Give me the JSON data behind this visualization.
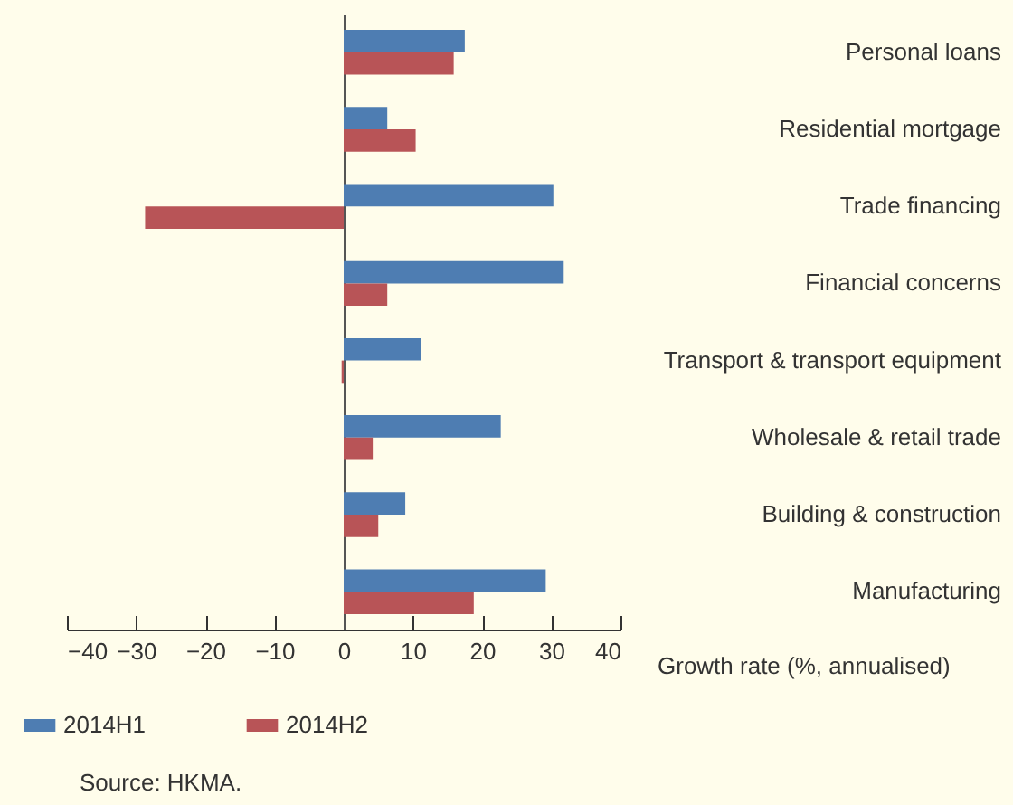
{
  "chart_data": {
    "type": "bar",
    "orientation": "horizontal",
    "xlabel": "Growth rate (%, annualised)",
    "categories": [
      "Personal loans",
      "Residential mortgage",
      "Trade financing",
      "Financial concerns",
      "Transport & transport equipment",
      "Wholesale & retail trade",
      "Building & construction",
      "Manufacturing"
    ],
    "series": [
      {
        "name": "2014H1",
        "color": "#4e7db2",
        "values": [
          17.5,
          6.3,
          30.3,
          31.8,
          11.2,
          22.7,
          8.9,
          29.2
        ]
      },
      {
        "name": "2014H2",
        "color": "#b85457",
        "values": [
          15.9,
          10.4,
          -28.7,
          6.3,
          -0.3,
          4.2,
          5.0,
          18.8
        ]
      }
    ],
    "xlim": [
      -40,
      40
    ],
    "xticks": [
      -40,
      -30,
      -20,
      -10,
      0,
      10,
      20,
      30,
      40
    ],
    "legend": "bottom left",
    "annotations": [
      "Source: HKMA."
    ]
  }
}
